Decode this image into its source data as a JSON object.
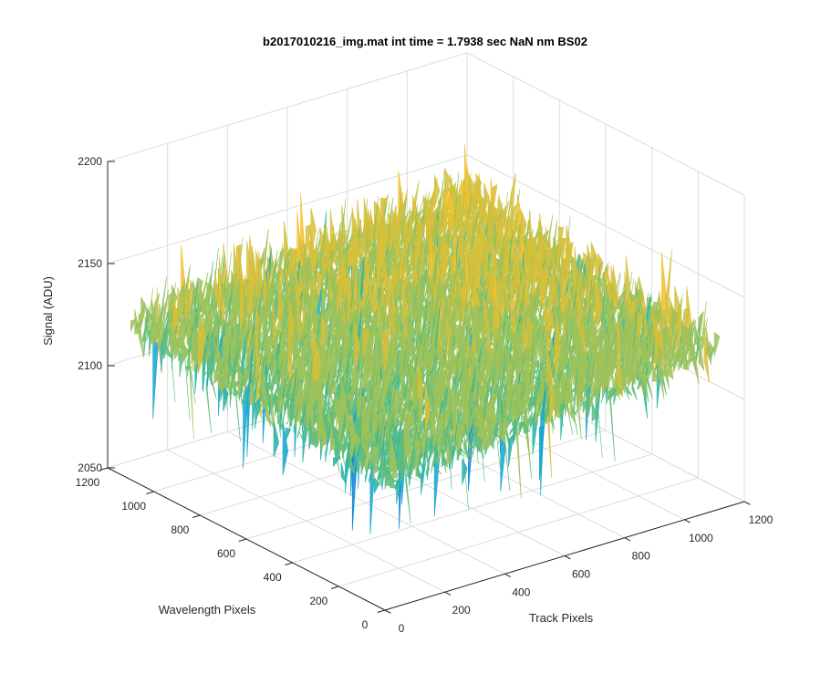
{
  "chart_data": {
    "type": "surface",
    "title": "b2017010216_img.mat int time = 1.7938 sec  NaN nm BS02",
    "xlabel": "Track Pixels",
    "ylabel": "Wavelength Pixels",
    "zlabel": "Signal (ADU)",
    "x_ticks": [
      0,
      200,
      400,
      600,
      800,
      1000,
      1200
    ],
    "y_ticks": [
      0,
      200,
      400,
      600,
      800,
      1000,
      1200
    ],
    "z_ticks": [
      2050,
      2100,
      2150,
      2200
    ],
    "xlim": [
      0,
      1200
    ],
    "ylim": [
      0,
      1200
    ],
    "zlim": [
      2050,
      2200
    ],
    "surface": {
      "x_extent": [
        0,
        1100
      ],
      "y_extent": [
        0,
        1100
      ],
      "z_mean_range": [
        2115,
        2145
      ],
      "z_noise_range": [
        2060,
        2175
      ],
      "colormap": [
        "#0d82d8",
        "#12a4cf",
        "#27b3a7",
        "#5ebd7c",
        "#9dc25a",
        "#d6bf3a",
        "#f2c12e"
      ]
    },
    "grid": true,
    "view": "3d-isometric"
  }
}
